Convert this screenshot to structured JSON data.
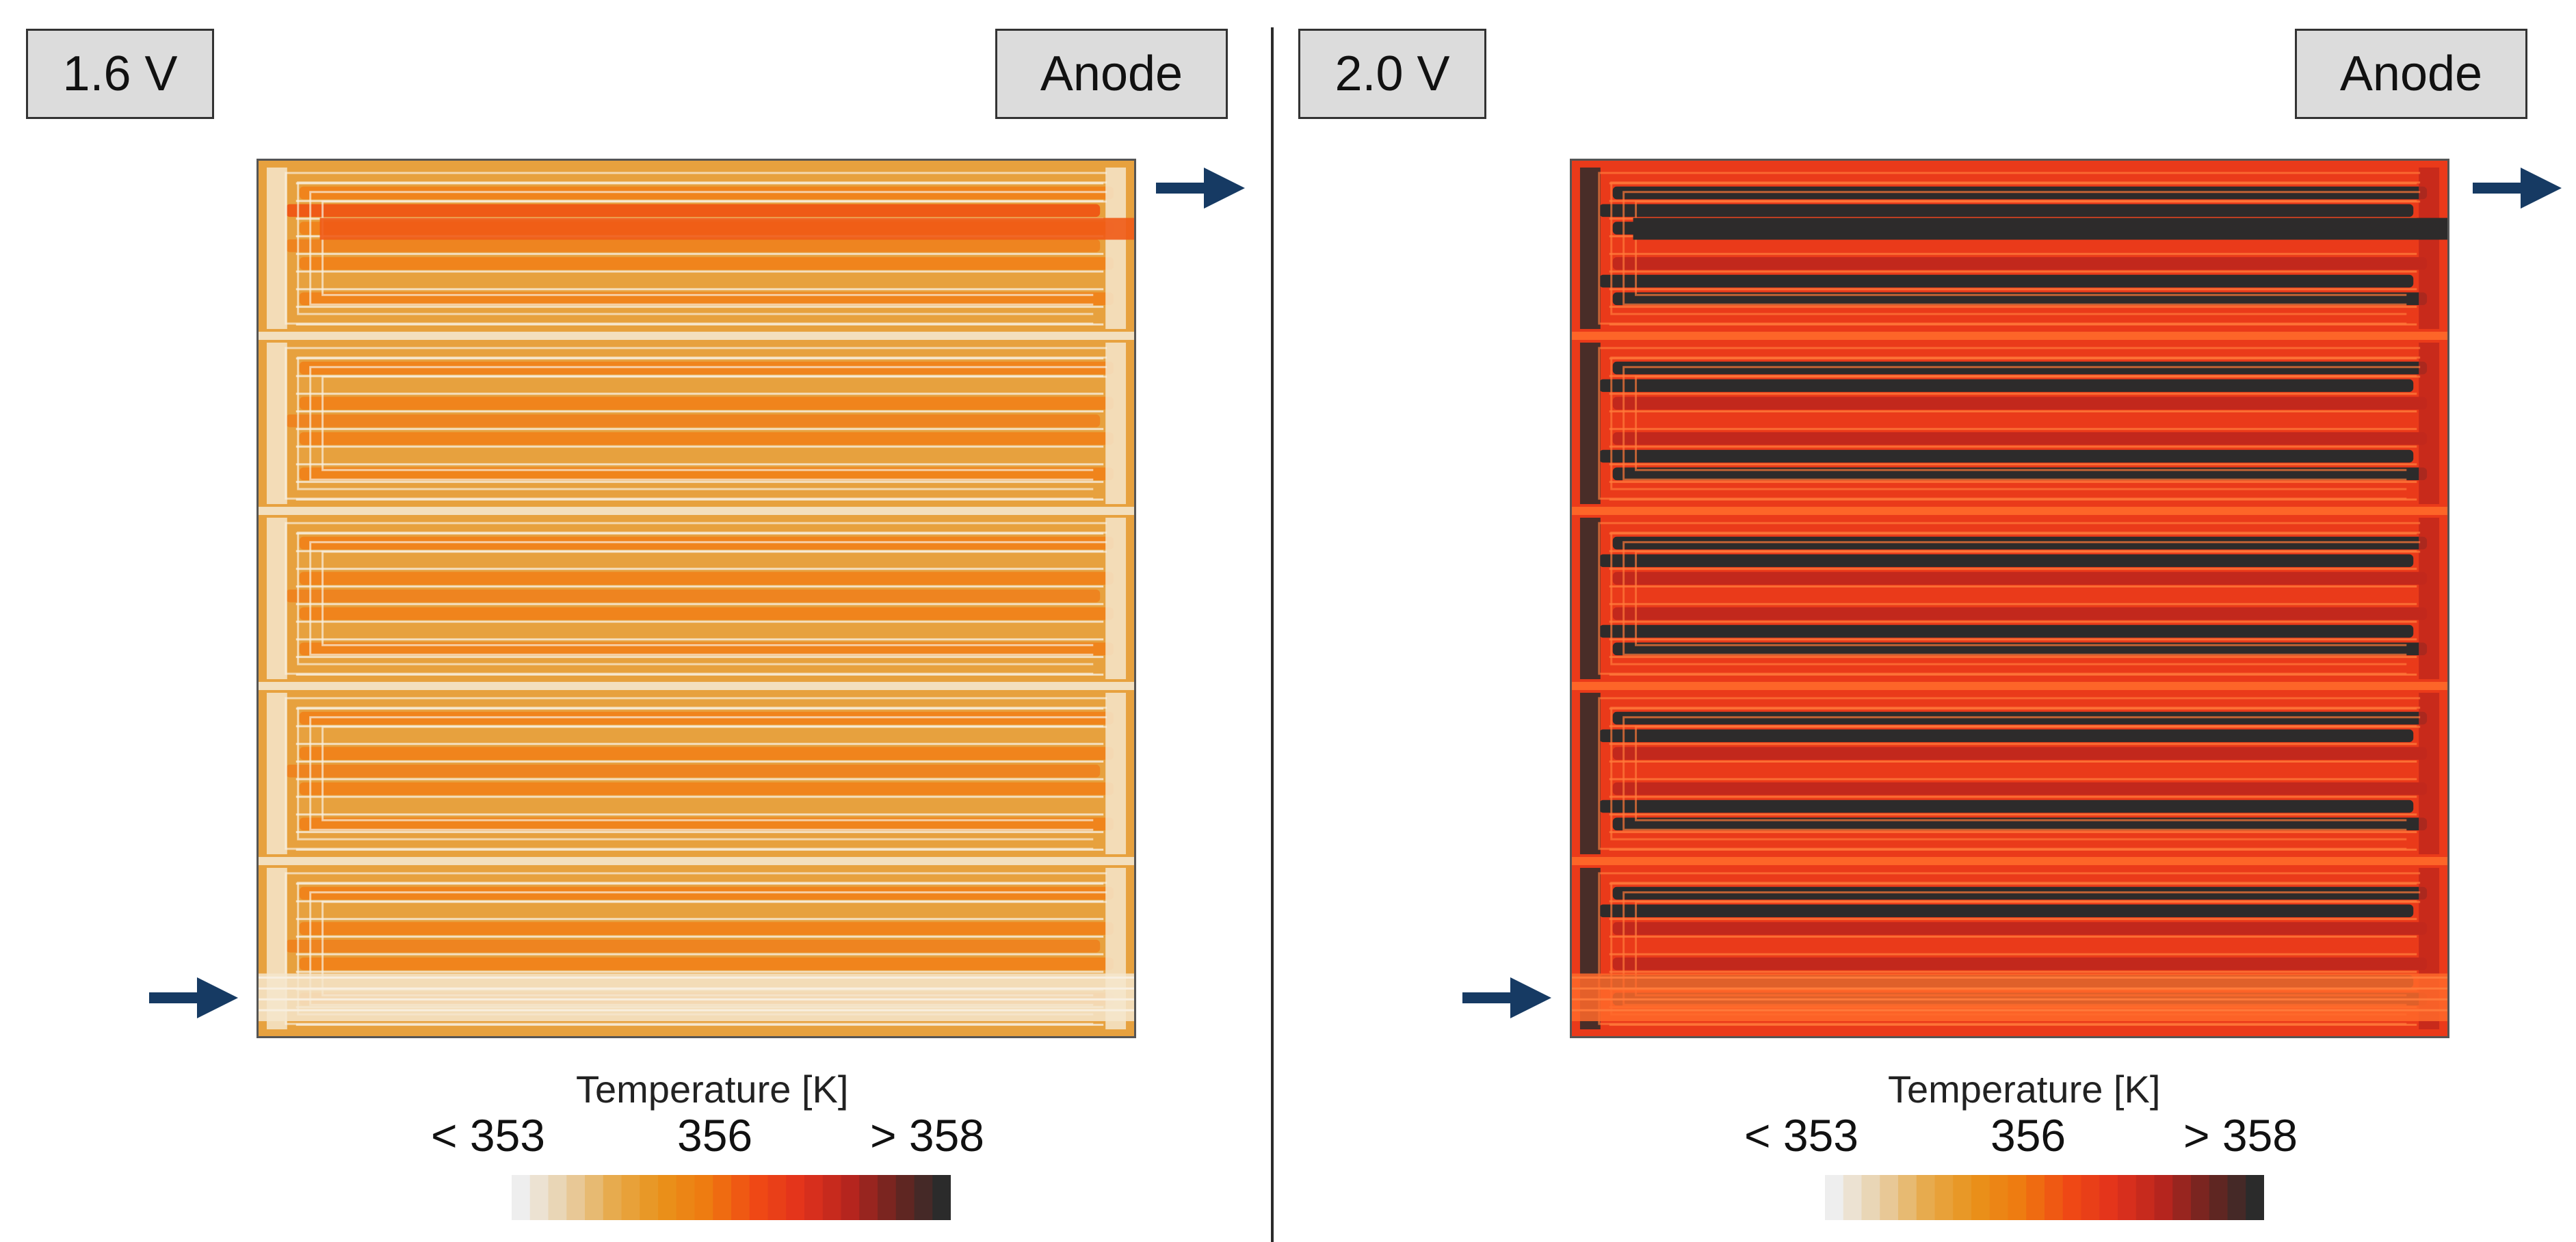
{
  "panels": [
    {
      "voltage_label": "1.6 V",
      "side_label": "Anode",
      "fill_level": "low",
      "colorbar": {
        "title": "Temperature [K]",
        "min_label": "< 353",
        "mid_label": "356",
        "max_label": "> 358"
      }
    },
    {
      "voltage_label": "2.0 V",
      "side_label": "Anode",
      "fill_level": "high",
      "colorbar": {
        "title": "Temperature [K]",
        "min_label": "< 353",
        "mid_label": "356",
        "max_label": "> 358"
      }
    }
  ],
  "colors": {
    "arrow": "#163a63",
    "divider": "#2b2b2b",
    "colormap": [
      "#eeeeee",
      "#e8cfa6",
      "#e7a94a",
      "#e9921a",
      "#ee7a10",
      "#f04a14",
      "#e2321c",
      "#b8251e",
      "#6e2520",
      "#2b2b2b"
    ]
  },
  "icons": [
    "arrow-right-icon"
  ]
}
